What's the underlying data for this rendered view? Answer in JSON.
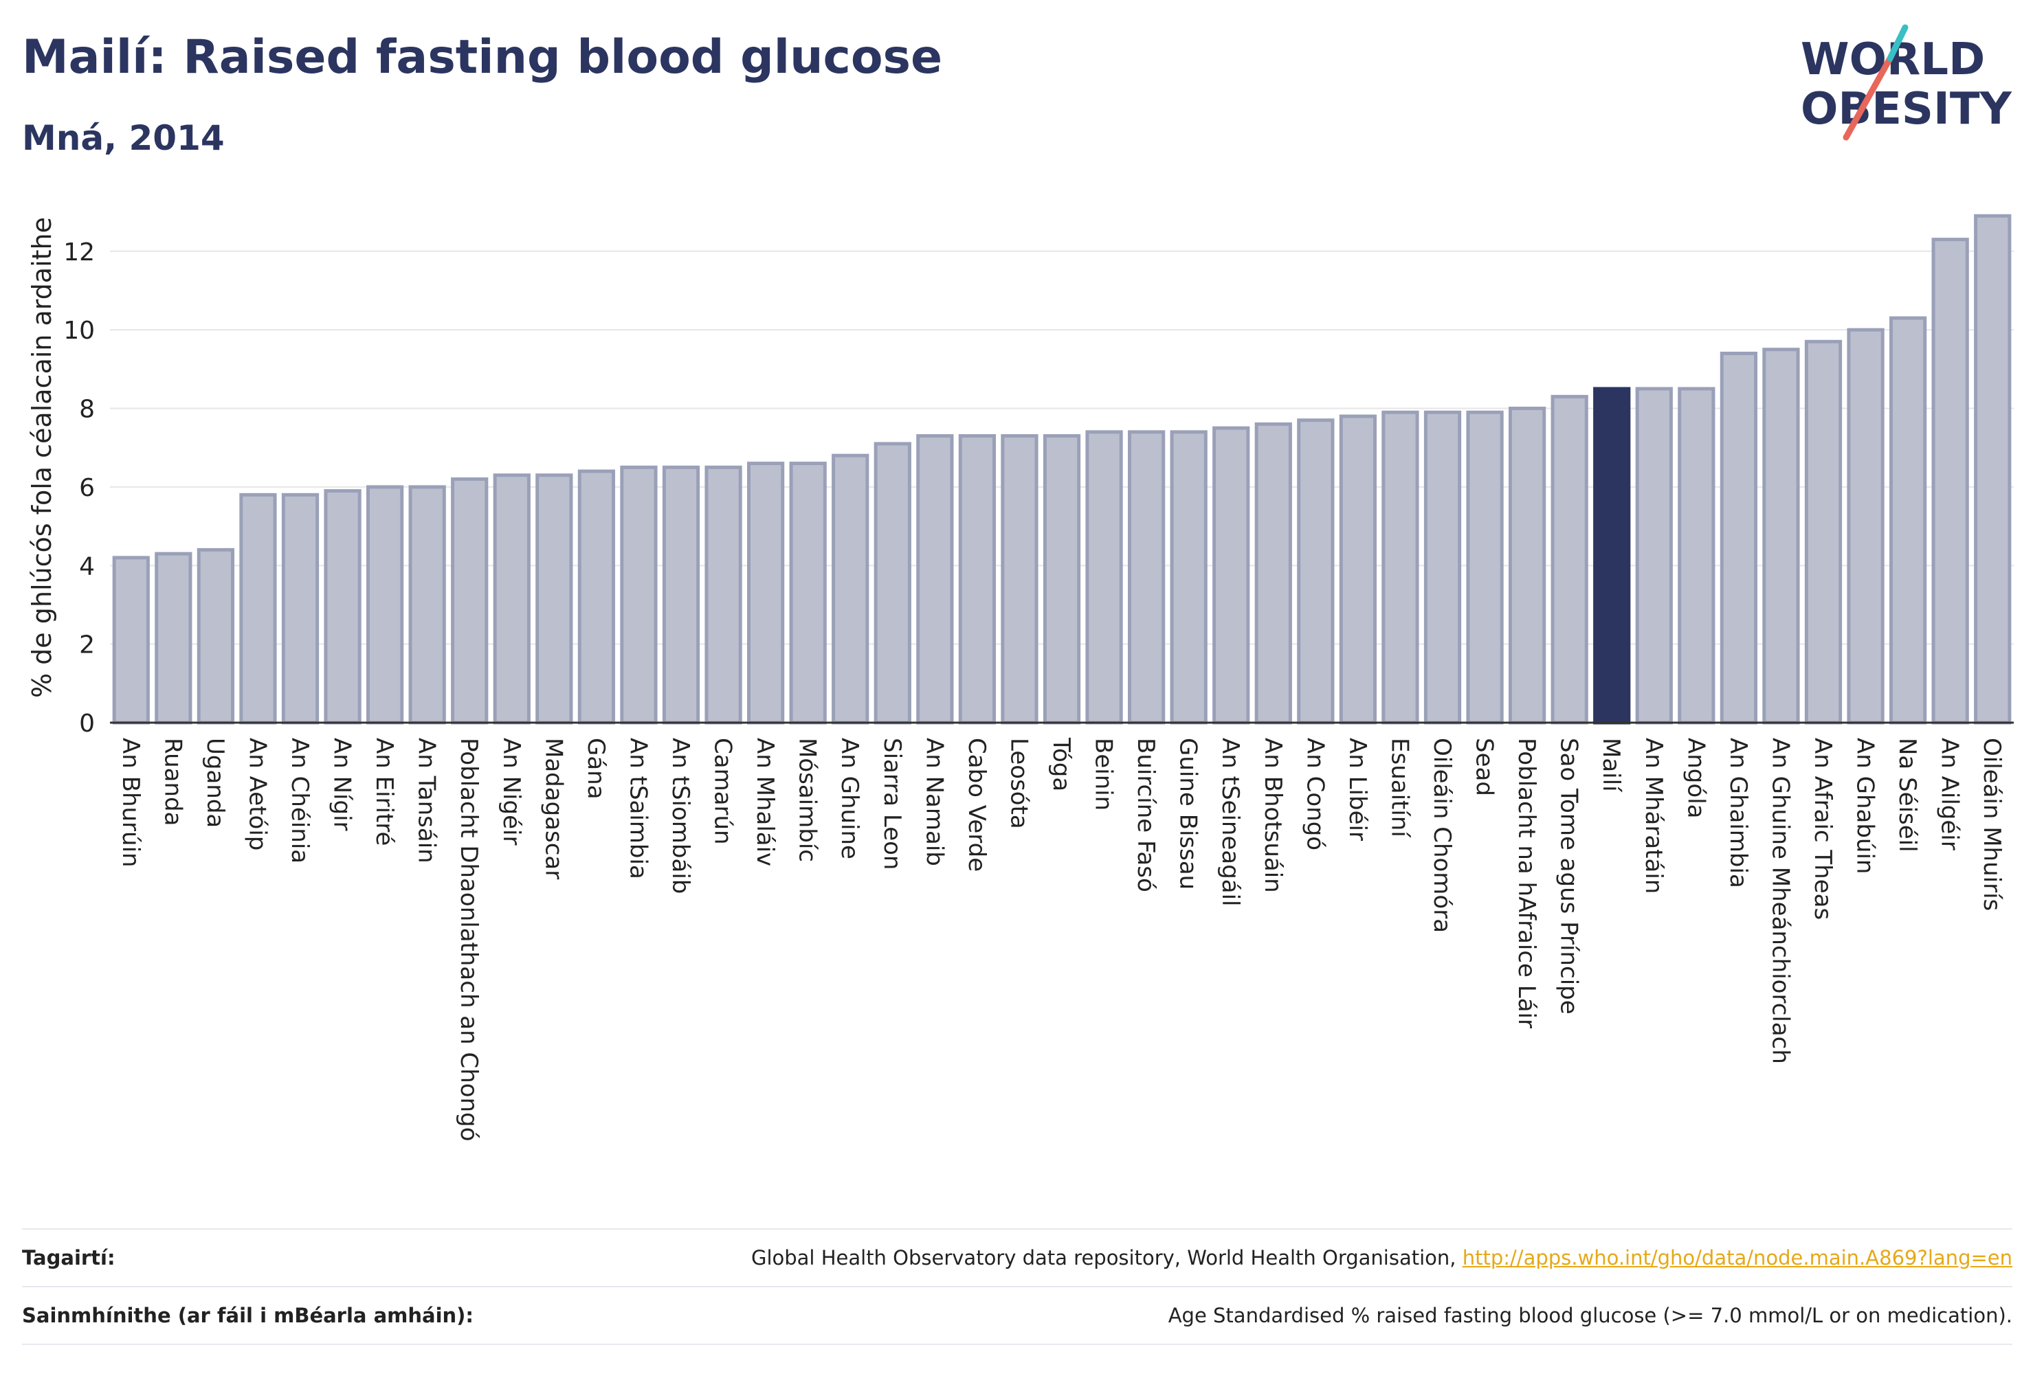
{
  "title": "Mailí: Raised fasting blood glucose",
  "subtitle": "Mná, 2014",
  "logo": {
    "line1": "WORLD",
    "line2": "OBESITY"
  },
  "colors": {
    "bar": "#bcc0ce",
    "bar_stroke": "#9aa0b8",
    "highlight": "#2b3560",
    "grid": "#e6e6ea",
    "text": "#2b3560"
  },
  "chart_data": {
    "type": "bar",
    "ylabel": "% de ghlúcós fola céalacain ardaithe",
    "ylim": [
      0,
      13.5
    ],
    "yticks": [
      0,
      2,
      4,
      6,
      8,
      10,
      12
    ],
    "highlight": "Mailí",
    "categories": [
      "An Bhurúin",
      "Ruanda",
      "Uganda",
      "An Aetóip",
      "An Chéinia",
      "An Nígir",
      "An Eiritré",
      "An Tansáin",
      "Poblacht Dhaonlathach an Chongó",
      "An Nigéir",
      "Madagascar",
      "Gána",
      "An tSaimbia",
      "An tSiombáib",
      "Camarún",
      "An Mhaláiv",
      "Mósaimbíc",
      "An Ghuine",
      "Siarra Leon",
      "An Namaib",
      "Cabo Verde",
      "Leosóta",
      "Tóga",
      "Beinin",
      "Buircíne Fasó",
      "Guine Bissau",
      "An tSeineagáil",
      "An Bhotsuáin",
      "An Congó",
      "An Libéir",
      "Esuaitíní",
      "Oileáin Chomóra",
      "Sead",
      "Poblacht na hAfraice Láir",
      "Sao Tome agus Príncipe",
      "Mailí",
      "An Mháratáin",
      "Angóla",
      "An Ghaimbia",
      "An Ghuine Mheánchiorclach",
      "An Afraic Theas",
      "An Ghabúin",
      "Na Séiséil",
      "An Ailgéir",
      "Oileáin Mhuirís"
    ],
    "values": [
      4.2,
      4.3,
      4.4,
      5.8,
      5.8,
      5.9,
      6.0,
      6.0,
      6.2,
      6.3,
      6.3,
      6.4,
      6.5,
      6.5,
      6.5,
      6.6,
      6.6,
      6.8,
      7.1,
      7.3,
      7.3,
      7.3,
      7.3,
      7.4,
      7.4,
      7.4,
      7.5,
      7.6,
      7.7,
      7.8,
      7.9,
      7.9,
      7.9,
      8.0,
      8.3,
      8.5,
      8.5,
      8.5,
      9.4,
      9.5,
      9.7,
      10.0,
      10.3,
      12.3,
      12.9
    ]
  },
  "footer": {
    "references_label": "Tagairtí:",
    "references_text": "Global Health Observatory data repository, World Health Organisation, ",
    "references_link": "http://apps.who.int/gho/data/node.main.A869?lang=en",
    "definitions_label": "Sainmhínithe (ar fáil i mBéarla amháin):",
    "definitions_text": "Age Standardised % raised fasting blood glucose (>= 7.0 mmol/L or on medication)."
  }
}
